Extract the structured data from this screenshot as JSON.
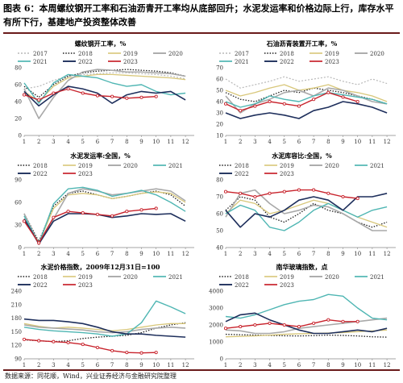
{
  "header": {
    "text": "图表 6：本周螺纹钢开工率和石油沥青开工率均从底部回升；水泥发运率和价格边际上行，库存水平有所下行，基建地产投资整体改善"
  },
  "footer": {
    "text": "数据来源：同花顺，Wind，兴业证券经济与金融研究院整理"
  },
  "colors": {
    "2017": "#b9b9b9",
    "2018": "#1f1f1f",
    "2019": "#d8c77a",
    "2020": "#a9a9a9",
    "2021": "#4fb6b3",
    "2022": "#1e2f5c",
    "2023": "#c8232c"
  },
  "chart_data": [
    {
      "type": "line",
      "title": "螺纹钢开工率，%",
      "ylim": [
        0,
        80
      ],
      "yticks": [
        0,
        20,
        40,
        60,
        80
      ],
      "xticks": [
        1,
        2,
        3,
        4,
        5,
        6,
        7,
        8,
        9,
        10,
        11,
        12
      ],
      "legend": [
        "2017",
        "2018",
        "2019",
        "2020",
        "2021",
        "2022",
        "2023"
      ],
      "series": [
        {
          "name": "2017",
          "values": [
            55,
            58,
            65,
            70,
            72,
            73,
            74,
            74,
            73,
            72,
            70,
            67
          ]
        },
        {
          "name": "2018",
          "values": [
            58,
            45,
            60,
            70,
            74,
            76,
            77,
            78,
            77,
            76,
            74,
            70
          ]
        },
        {
          "name": "2019",
          "values": [
            52,
            40,
            58,
            68,
            70,
            72,
            72,
            71,
            70,
            69,
            68,
            66
          ]
        },
        {
          "name": "2020",
          "values": [
            55,
            20,
            45,
            65,
            75,
            78,
            77,
            75,
            75,
            74,
            73,
            70
          ]
        },
        {
          "name": "2021",
          "values": [
            62,
            38,
            62,
            72,
            70,
            68,
            62,
            58,
            60,
            52,
            48,
            50
          ]
        },
        {
          "name": "2022",
          "values": [
            52,
            35,
            48,
            58,
            55,
            50,
            38,
            48,
            52,
            50,
            52,
            42
          ]
        },
        {
          "name": "2023",
          "values": [
            48,
            42,
            50,
            55,
            50,
            47,
            46,
            44,
            45,
            46
          ]
        }
      ]
    },
    {
      "type": "line",
      "title": "石油沥青装置开工率，%",
      "ylim": [
        10,
        70
      ],
      "yticks": [
        10,
        20,
        30,
        40,
        50,
        60,
        70
      ],
      "xticks": [
        1,
        2,
        3,
        4,
        5,
        6,
        7,
        8,
        9,
        10,
        11,
        12
      ],
      "legend": [
        "2017",
        "2018",
        "2019",
        "2020",
        "2021",
        "2022",
        "2023"
      ],
      "series": [
        {
          "name": "2017",
          "values": [
            60,
            52,
            55,
            58,
            62,
            58,
            60,
            62,
            58,
            55,
            60,
            56
          ]
        },
        {
          "name": "2018",
          "values": [
            48,
            42,
            40,
            45,
            50,
            48,
            52,
            50,
            48,
            45,
            42,
            38
          ]
        },
        {
          "name": "2019",
          "values": [
            50,
            45,
            48,
            52,
            55,
            50,
            52,
            55,
            50,
            48,
            45,
            40
          ]
        },
        {
          "name": "2020",
          "values": [
            45,
            30,
            38,
            42,
            48,
            50,
            45,
            52,
            50,
            45,
            40,
            38
          ]
        },
        {
          "name": "2021",
          "values": [
            40,
            35,
            38,
            45,
            42,
            40,
            45,
            48,
            46,
            44,
            42,
            38
          ]
        },
        {
          "name": "2022",
          "values": [
            30,
            25,
            28,
            30,
            28,
            25,
            32,
            35,
            40,
            38,
            35,
            30
          ]
        },
        {
          "name": "2023",
          "values": [
            38,
            32,
            36,
            40,
            38,
            36,
            42,
            48,
            44,
            40
          ]
        }
      ]
    },
    {
      "type": "line",
      "title": "水泥发运率:全国，%",
      "ylim": [
        0,
        90
      ],
      "yticks": [
        0,
        30,
        60,
        90
      ],
      "xticks": [
        1,
        2,
        3,
        4,
        5,
        6,
        7,
        8,
        9,
        10,
        11,
        12
      ],
      "legend": [
        "2018",
        "2019",
        "2020",
        "2021",
        "2022",
        "2023"
      ],
      "series": [
        {
          "name": "2018",
          "values": [
            45,
            8,
            55,
            72,
            75,
            70,
            65,
            68,
            72,
            75,
            70,
            55
          ]
        },
        {
          "name": "2019",
          "values": [
            42,
            6,
            52,
            70,
            72,
            70,
            65,
            68,
            72,
            74,
            72,
            60
          ]
        },
        {
          "name": "2020",
          "values": [
            45,
            4,
            38,
            72,
            78,
            75,
            70,
            72,
            75,
            78,
            75,
            62
          ]
        },
        {
          "name": "2021",
          "values": [
            42,
            5,
            58,
            78,
            80,
            76,
            68,
            72,
            76,
            70,
            60,
            48
          ]
        },
        {
          "name": "2022",
          "values": [
            38,
            5,
            35,
            45,
            45,
            44,
            40,
            42,
            45,
            44,
            45,
            35
          ]
        },
        {
          "name": "2023",
          "values": [
            35,
            6,
            40,
            48,
            46,
            44,
            42,
            48,
            50,
            52
          ]
        }
      ]
    },
    {
      "type": "line",
      "title": "水泥库容比:全国，%",
      "ylim": [
        40,
        80
      ],
      "yticks": [
        40,
        50,
        60,
        70,
        80
      ],
      "xticks": [
        1,
        2,
        3,
        4,
        5,
        6,
        7,
        8,
        9,
        10,
        11,
        12
      ],
      "legend": [
        "2018",
        "2019",
        "2020",
        "2021",
        "2022",
        "2023"
      ],
      "series": [
        {
          "name": "2018",
          "values": [
            62,
            70,
            68,
            58,
            55,
            60,
            66,
            62,
            60,
            55,
            52,
            55
          ]
        },
        {
          "name": "2019",
          "values": [
            60,
            68,
            66,
            60,
            62,
            65,
            68,
            66,
            62,
            58,
            55,
            52
          ]
        },
        {
          "name": "2020",
          "values": [
            58,
            72,
            74,
            66,
            60,
            62,
            65,
            64,
            60,
            55,
            50,
            50
          ]
        },
        {
          "name": "2021",
          "values": [
            60,
            65,
            62,
            52,
            50,
            55,
            62,
            66,
            62,
            58,
            62,
            64
          ]
        },
        {
          "name": "2022",
          "values": [
            62,
            52,
            60,
            58,
            62,
            68,
            70,
            68,
            62,
            70,
            70,
            72
          ]
        },
        {
          "name": "2023",
          "values": [
            73,
            72,
            70,
            72,
            73,
            74,
            74,
            72,
            70,
            69
          ]
        }
      ]
    },
    {
      "type": "line",
      "title": "水泥价格指数，2009年12月31日=100",
      "ylim": [
        90,
        240
      ],
      "yticks": [
        90,
        120,
        150,
        180,
        210,
        240
      ],
      "xticks": [
        1,
        2,
        3,
        4,
        5,
        6,
        7,
        8,
        9,
        10,
        11,
        12
      ],
      "legend": [
        "2018",
        "2019",
        "2020",
        "2021",
        "2022",
        "2023"
      ],
      "series": [
        {
          "name": "2018",
          "values": [
            132,
            130,
            128,
            130,
            135,
            138,
            140,
            142,
            148,
            158,
            165,
            170
          ]
        },
        {
          "name": "2019",
          "values": [
            168,
            162,
            158,
            160,
            158,
            155,
            152,
            155,
            160,
            165,
            168,
            168
          ]
        },
        {
          "name": "2020",
          "values": [
            165,
            160,
            158,
            156,
            154,
            150,
            148,
            150,
            155,
            158,
            160,
            158
          ]
        },
        {
          "name": "2021",
          "values": [
            160,
            155,
            152,
            150,
            148,
            145,
            140,
            145,
            170,
            218,
            205,
            190
          ]
        },
        {
          "name": "2022",
          "values": [
            178,
            175,
            175,
            172,
            168,
            160,
            150,
            145,
            145,
            142,
            140,
            138
          ]
        },
        {
          "name": "2023",
          "values": [
            133,
            130,
            128,
            126,
            122,
            115,
            108,
            104,
            103,
            104
          ]
        }
      ]
    },
    {
      "type": "line",
      "title": "南华玻璃指数，点",
      "ylim": [
        0,
        4000
      ],
      "yticks": [
        0,
        1000,
        2000,
        3000,
        4000
      ],
      "xticks": [
        1,
        2,
        3,
        4,
        5,
        6,
        7,
        8,
        9,
        10,
        11,
        12
      ],
      "legend": [
        "2018",
        "2019",
        "2020",
        "2021",
        "2022",
        "2023"
      ],
      "series": [
        {
          "name": "2018",
          "values": [
            1450,
            1420,
            1400,
            1380,
            1360,
            1350,
            1370,
            1400,
            1380,
            1350,
            1300,
            1280
          ]
        },
        {
          "name": "2019",
          "values": [
            1300,
            1320,
            1350,
            1400,
            1450,
            1480,
            1500,
            1520,
            1550,
            1600,
            1650,
            1700
          ]
        },
        {
          "name": "2020",
          "values": [
            1700,
            1650,
            1500,
            1500,
            1600,
            1800,
            1900,
            2000,
            2100,
            2200,
            2300,
            2400
          ]
        },
        {
          "name": "2021",
          "values": [
            2500,
            2400,
            2600,
            2900,
            3200,
            3400,
            3500,
            3800,
            3700,
            3000,
            2400,
            2300
          ]
        },
        {
          "name": "2022",
          "values": [
            2200,
            2600,
            2700,
            2300,
            2000,
            1700,
            1500,
            1500,
            1600,
            1700,
            1600,
            1800
          ]
        },
        {
          "name": "2023",
          "values": [
            1800,
            1900,
            2000,
            2100,
            2000,
            1900,
            2100,
            2300,
            2200,
            2200
          ]
        }
      ]
    }
  ]
}
